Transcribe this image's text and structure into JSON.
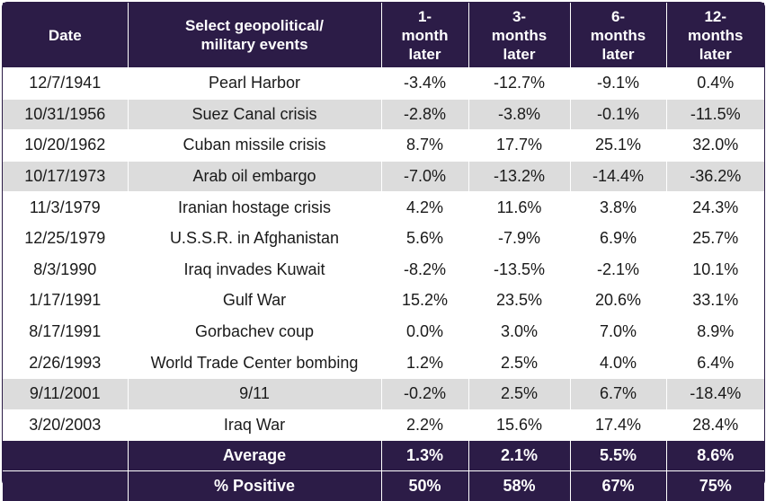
{
  "header": {
    "date": "Date",
    "event": "Select geopolitical/\nmilitary events",
    "m1": "1-\nmonth\nlater",
    "m3": "3-\nmonths\nlater",
    "m6": "6-\nmonths\nlater",
    "m12": "12-\nmonths\nlater"
  },
  "rows": [
    {
      "date": "12/7/1941",
      "event": "Pearl Harbor",
      "m1": "-3.4%",
      "m3": "-12.7%",
      "m6": "-9.1%",
      "m12": "0.4%",
      "shaded": false
    },
    {
      "date": "10/31/1956",
      "event": "Suez Canal crisis",
      "m1": "-2.8%",
      "m3": "-3.8%",
      "m6": "-0.1%",
      "m12": "-11.5%",
      "shaded": true
    },
    {
      "date": "10/20/1962",
      "event": "Cuban missile crisis",
      "m1": "8.7%",
      "m3": "17.7%",
      "m6": "25.1%",
      "m12": "32.0%",
      "shaded": false
    },
    {
      "date": "10/17/1973",
      "event": "Arab oil embargo",
      "m1": "-7.0%",
      "m3": "-13.2%",
      "m6": "-14.4%",
      "m12": "-36.2%",
      "shaded": true
    },
    {
      "date": "11/3/1979",
      "event": "Iranian hostage crisis",
      "m1": "4.2%",
      "m3": "11.6%",
      "m6": "3.8%",
      "m12": "24.3%",
      "shaded": false
    },
    {
      "date": "12/25/1979",
      "event": "U.S.S.R. in Afghanistan",
      "m1": "5.6%",
      "m3": "-7.9%",
      "m6": "6.9%",
      "m12": "25.7%",
      "shaded": false
    },
    {
      "date": "8/3/1990",
      "event": "Iraq invades Kuwait",
      "m1": "-8.2%",
      "m3": "-13.5%",
      "m6": "-2.1%",
      "m12": "10.1%",
      "shaded": false
    },
    {
      "date": "1/17/1991",
      "event": "Gulf War",
      "m1": "15.2%",
      "m3": "23.5%",
      "m6": "20.6%",
      "m12": "33.1%",
      "shaded": false
    },
    {
      "date": "8/17/1991",
      "event": "Gorbachev coup",
      "m1": "0.0%",
      "m3": "3.0%",
      "m6": "7.0%",
      "m12": "8.9%",
      "shaded": false
    },
    {
      "date": "2/26/1993",
      "event": "World Trade Center bombing",
      "m1": "1.2%",
      "m3": "2.5%",
      "m6": "4.0%",
      "m12": "6.4%",
      "shaded": false
    },
    {
      "date": "9/11/2001",
      "event": "9/11",
      "m1": "-0.2%",
      "m3": "2.5%",
      "m6": "6.7%",
      "m12": "-18.4%",
      "shaded": true
    },
    {
      "date": "3/20/2003",
      "event": "Iraq War",
      "m1": "2.2%",
      "m3": "15.6%",
      "m6": "17.4%",
      "m12": "28.4%",
      "shaded": false
    }
  ],
  "summary": [
    {
      "label": "Average",
      "m1": "1.3%",
      "m3": "2.1%",
      "m6": "5.5%",
      "m12": "8.6%"
    },
    {
      "label": "% Positive",
      "m1": "50%",
      "m3": "58%",
      "m6": "67%",
      "m12": "75%"
    }
  ],
  "colors": {
    "header_bg": "#2c1c47",
    "shaded_row": "#dcdcdc"
  }
}
